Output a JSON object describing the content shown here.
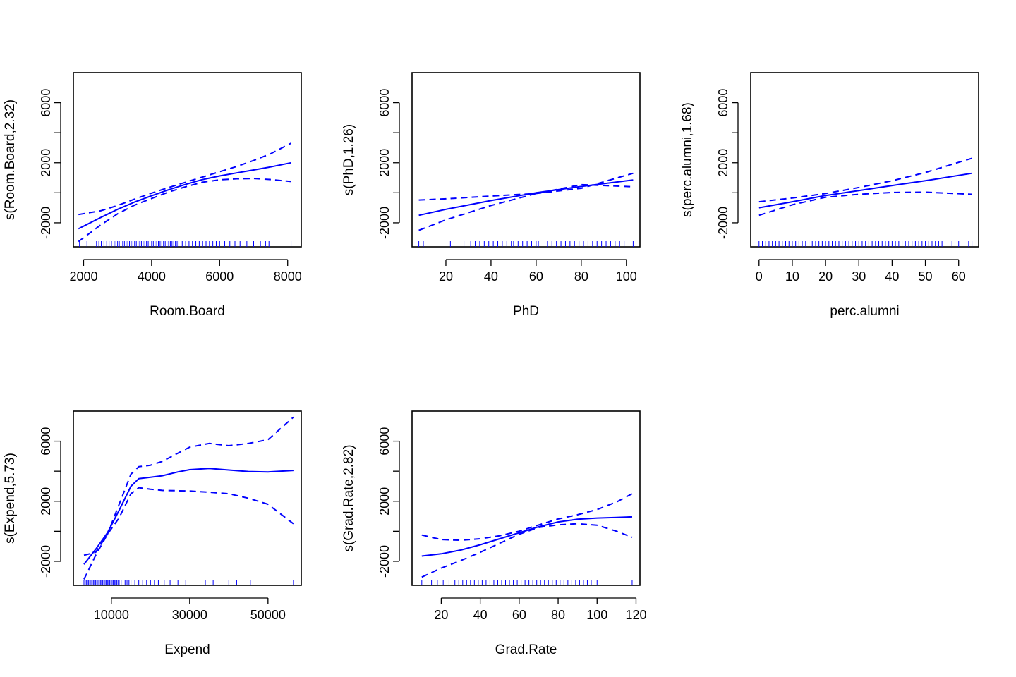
{
  "chart_data": [
    {
      "type": "line",
      "title": "",
      "xlabel": "Room.Board",
      "ylabel": "s(Room.Board,2.32)",
      "xlim": [
        1700,
        8400
      ],
      "ylim": [
        -3600,
        8000
      ],
      "xticks": [
        2000,
        4000,
        6000,
        8000
      ],
      "xtick_labels": [
        "2000",
        "4000",
        "6000",
        "8000"
      ],
      "yticks": [
        -2000,
        0,
        2000,
        4000,
        6000
      ],
      "ytick_labels": [
        "-2000",
        "",
        "2000",
        "",
        "6000"
      ],
      "series": [
        {
          "role": "fit",
          "linestyle": "solid",
          "x": [
            1850,
            2500,
            3000,
            3500,
            4000,
            4500,
            5000,
            5500,
            6000,
            6500,
            7000,
            7500,
            8100
          ],
          "y": [
            -2400,
            -1650,
            -1100,
            -620,
            -200,
            200,
            560,
            880,
            1120,
            1320,
            1520,
            1720,
            2000
          ]
        },
        {
          "role": "upper",
          "linestyle": "dashed",
          "x": [
            1850,
            2500,
            3000,
            3500,
            4000,
            4500,
            5000,
            5500,
            6000,
            6500,
            7000,
            7500,
            8100
          ],
          "y": [
            -1450,
            -1200,
            -850,
            -420,
            -20,
            350,
            700,
            1050,
            1400,
            1750,
            2150,
            2600,
            3300
          ]
        },
        {
          "role": "lower",
          "linestyle": "dashed",
          "x": [
            1850,
            2500,
            3000,
            3500,
            4000,
            4500,
            5000,
            5500,
            6000,
            6500,
            7000,
            7500,
            8100
          ],
          "y": [
            -3250,
            -2150,
            -1400,
            -820,
            -380,
            50,
            400,
            700,
            860,
            930,
            950,
            880,
            750
          ]
        }
      ],
      "rug": [
        1880,
        2100,
        2250,
        2380,
        2450,
        2520,
        2600,
        2680,
        2750,
        2820,
        2900,
        2950,
        3000,
        3050,
        3100,
        3150,
        3200,
        3250,
        3300,
        3350,
        3400,
        3450,
        3500,
        3550,
        3600,
        3650,
        3700,
        3750,
        3800,
        3850,
        3900,
        3950,
        4000,
        4050,
        4100,
        4150,
        4200,
        4250,
        4300,
        4350,
        4400,
        4450,
        4500,
        4550,
        4600,
        4650,
        4700,
        4750,
        4800,
        4900,
        5000,
        5100,
        5200,
        5300,
        5400,
        5500,
        5600,
        5700,
        5800,
        5900,
        6000,
        6150,
        6300,
        6450,
        6600,
        6800,
        7000,
        7200,
        7350,
        7450,
        8100
      ]
    },
    {
      "type": "line",
      "title": "",
      "xlabel": "PhD",
      "ylabel": "s(PhD,1.26)",
      "xlim": [
        5,
        106
      ],
      "ylim": [
        -3600,
        8000
      ],
      "xticks": [
        20,
        40,
        60,
        80,
        100
      ],
      "xtick_labels": [
        "20",
        "40",
        "60",
        "80",
        "100"
      ],
      "yticks": [
        -2000,
        0,
        2000,
        4000,
        6000
      ],
      "ytick_labels": [
        "-2000",
        "",
        "2000",
        "",
        "6000"
      ],
      "series": [
        {
          "role": "fit",
          "linestyle": "solid",
          "x": [
            8,
            20,
            40,
            60,
            80,
            103
          ],
          "y": [
            -1500,
            -1100,
            -520,
            0,
            420,
            850
          ]
        },
        {
          "role": "upper",
          "linestyle": "dashed",
          "x": [
            8,
            20,
            40,
            60,
            80,
            103
          ],
          "y": [
            -480,
            -400,
            -220,
            -50,
            300,
            1300
          ]
        },
        {
          "role": "lower",
          "linestyle": "dashed",
          "x": [
            8,
            20,
            40,
            60,
            80,
            103
          ],
          "y": [
            -2500,
            -1800,
            -850,
            -50,
            540,
            400
          ]
        }
      ],
      "rug": [
        8,
        10,
        22,
        28,
        31,
        33,
        35,
        37,
        39,
        41,
        43,
        45,
        47,
        49,
        50,
        52,
        54,
        56,
        58,
        60,
        61,
        63,
        65,
        67,
        69,
        71,
        73,
        75,
        77,
        79,
        81,
        83,
        85,
        87,
        89,
        91,
        93,
        95,
        97,
        99,
        103
      ]
    },
    {
      "type": "line",
      "title": "",
      "xlabel": "perc.alumni",
      "ylabel": "s(perc.alumni,1.68)",
      "xlim": [
        -2.5,
        66
      ],
      "ylim": [
        -3600,
        8000
      ],
      "xticks": [
        0,
        10,
        20,
        30,
        40,
        50,
        60
      ],
      "xtick_labels": [
        "0",
        "10",
        "20",
        "30",
        "40",
        "50",
        "60"
      ],
      "yticks": [
        -2000,
        0,
        2000,
        4000,
        6000
      ],
      "ytick_labels": [
        "-2000",
        "",
        "2000",
        "",
        "6000"
      ],
      "series": [
        {
          "role": "fit",
          "linestyle": "solid",
          "x": [
            0,
            10,
            20,
            30,
            40,
            50,
            64
          ],
          "y": [
            -1000,
            -600,
            -180,
            150,
            480,
            800,
            1300
          ]
        },
        {
          "role": "upper",
          "linestyle": "dashed",
          "x": [
            0,
            10,
            20,
            30,
            40,
            50,
            64
          ],
          "y": [
            -600,
            -350,
            -50,
            350,
            800,
            1350,
            2300
          ]
        },
        {
          "role": "lower",
          "linestyle": "dashed",
          "x": [
            0,
            10,
            20,
            30,
            40,
            50,
            64
          ],
          "y": [
            -1500,
            -800,
            -300,
            -100,
            20,
            40,
            -100
          ]
        }
      ],
      "rug": [
        0,
        1,
        2,
        3,
        4,
        5,
        6,
        7,
        8,
        9,
        10,
        11,
        12,
        13,
        14,
        15,
        16,
        17,
        18,
        19,
        20,
        21,
        22,
        23,
        24,
        25,
        26,
        27,
        28,
        29,
        30,
        31,
        32,
        33,
        34,
        35,
        36,
        37,
        38,
        39,
        40,
        41,
        42,
        43,
        44,
        45,
        46,
        47,
        48,
        49,
        50,
        51,
        52,
        53,
        54,
        55,
        58,
        60,
        63,
        64
      ]
    },
    {
      "type": "line",
      "title": "",
      "xlabel": "Expend",
      "ylabel": "s(Expend,5.73)",
      "xlim": [
        300,
        58500
      ],
      "ylim": [
        -3600,
        8000
      ],
      "xticks": [
        10000,
        30000,
        50000
      ],
      "xtick_labels": [
        "10000",
        "30000",
        "50000"
      ],
      "yticks": [
        -2000,
        0,
        2000,
        4000,
        6000
      ],
      "ytick_labels": [
        "-2000",
        "",
        "2000",
        "",
        "6000"
      ],
      "series": [
        {
          "role": "fit",
          "linestyle": "solid",
          "x": [
            3000,
            6000,
            9000,
            12000,
            15000,
            17000,
            20000,
            23000,
            27000,
            30000,
            35000,
            40000,
            45000,
            50000,
            56500
          ],
          "y": [
            -2200,
            -1200,
            -100,
            1400,
            3000,
            3500,
            3600,
            3700,
            3950,
            4100,
            4180,
            4080,
            3980,
            3950,
            4050
          ]
        },
        {
          "role": "upper",
          "linestyle": "dashed",
          "x": [
            3000,
            6000,
            9000,
            12000,
            15000,
            17000,
            20000,
            23000,
            27000,
            30000,
            35000,
            40000,
            45000,
            50000,
            56500
          ],
          "y": [
            -1600,
            -1400,
            -200,
            1800,
            3800,
            4300,
            4400,
            4650,
            5200,
            5600,
            5850,
            5700,
            5850,
            6100,
            7600
          ]
        },
        {
          "role": "lower",
          "linestyle": "dashed",
          "x": [
            3000,
            6000,
            9000,
            12000,
            15000,
            17000,
            20000,
            23000,
            27000,
            30000,
            35000,
            40000,
            45000,
            50000,
            56500
          ],
          "y": [
            -3200,
            -1600,
            -200,
            900,
            2500,
            2900,
            2800,
            2720,
            2700,
            2680,
            2600,
            2500,
            2200,
            1800,
            500
          ]
        }
      ],
      "rug": [
        3000,
        3300,
        3600,
        3900,
        4200,
        4500,
        4800,
        5100,
        5400,
        5700,
        6000,
        6300,
        6600,
        6900,
        7200,
        7500,
        7800,
        8100,
        8400,
        8700,
        9000,
        9300,
        9600,
        9900,
        10200,
        10500,
        10800,
        11100,
        11400,
        11700,
        12000,
        12500,
        13000,
        13500,
        14000,
        14500,
        15000,
        16000,
        17000,
        18000,
        19000,
        20000,
        21000,
        22000,
        23500,
        25000,
        27000,
        29000,
        34000,
        36000,
        40000,
        42000,
        45500,
        56500
      ]
    },
    {
      "type": "line",
      "title": "",
      "xlabel": "Grad.Rate",
      "ylabel": "s(Grad.Rate,2.82)",
      "xlim": [
        5,
        122
      ],
      "ylim": [
        -3600,
        8000
      ],
      "xticks": [
        20,
        40,
        60,
        80,
        100,
        120
      ],
      "xtick_labels": [
        "20",
        "40",
        "60",
        "80",
        "100",
        "120"
      ],
      "yticks": [
        -2000,
        0,
        2000,
        4000,
        6000
      ],
      "ytick_labels": [
        "-2000",
        "",
        "2000",
        "",
        "6000"
      ],
      "series": [
        {
          "role": "fit",
          "linestyle": "solid",
          "x": [
            10,
            20,
            30,
            40,
            50,
            60,
            70,
            80,
            90,
            100,
            110,
            118
          ],
          "y": [
            -1650,
            -1500,
            -1250,
            -900,
            -500,
            -100,
            300,
            620,
            800,
            880,
            920,
            960
          ]
        },
        {
          "role": "upper",
          "linestyle": "dashed",
          "x": [
            10,
            20,
            30,
            40,
            50,
            60,
            70,
            80,
            90,
            100,
            110,
            118
          ],
          "y": [
            -250,
            -550,
            -600,
            -500,
            -300,
            0,
            420,
            820,
            1100,
            1450,
            1950,
            2500
          ]
        },
        {
          "role": "lower",
          "linestyle": "dashed",
          "x": [
            10,
            20,
            30,
            40,
            50,
            60,
            70,
            80,
            90,
            100,
            110,
            118
          ],
          "y": [
            -3050,
            -2450,
            -1950,
            -1400,
            -800,
            -200,
            250,
            430,
            500,
            400,
            0,
            -400
          ]
        }
      ],
      "rug": [
        10,
        15,
        18,
        21,
        24,
        27,
        29,
        31,
        33,
        35,
        37,
        39,
        41,
        43,
        45,
        47,
        49,
        51,
        53,
        55,
        57,
        59,
        61,
        63,
        65,
        67,
        69,
        71,
        73,
        75,
        77,
        79,
        81,
        83,
        85,
        87,
        89,
        91,
        93,
        95,
        97,
        99,
        100,
        118
      ]
    }
  ],
  "colors": {
    "line": "#0000ff",
    "rug": "#0000ff",
    "axis": "#000000"
  }
}
